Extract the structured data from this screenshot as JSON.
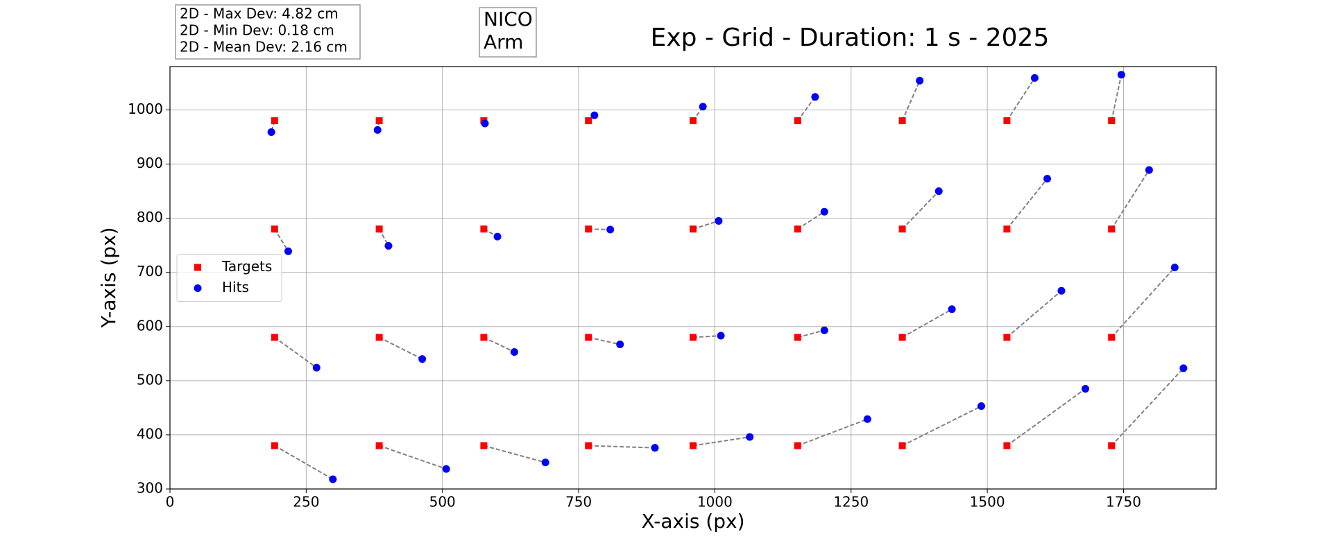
{
  "chart_data": {
    "type": "scatter",
    "title": "Exp - Grid - Duration: 1 s - 2025",
    "x_label": "X-axis (px)",
    "y_label": "Y-axis (px)",
    "annotations": [
      [
        "2D - Max Dev: 4.82 cm",
        "2D - Min Dev: 0.18 cm",
        "2D - Mean Dev: 2.16 cm"
      ],
      [
        "NICO",
        "Arm"
      ]
    ],
    "xlim": [
      0,
      1920
    ],
    "ylim": [
      300,
      1080
    ],
    "xticks": [
      0,
      250,
      500,
      750,
      1000,
      1250,
      1500,
      1750
    ],
    "yticks": [
      300,
      400,
      500,
      600,
      700,
      800,
      900,
      1000
    ],
    "grid": true,
    "legend": "center left",
    "series": [
      {
        "name": "Targets",
        "color": "#ff0000",
        "marker": "square",
        "x": [
          192,
          384,
          576,
          768,
          960,
          1152,
          1344,
          1536,
          1728,
          192,
          384,
          576,
          768,
          960,
          1152,
          1344,
          1536,
          1728,
          192,
          384,
          576,
          768,
          960,
          1152,
          1344,
          1536,
          1728,
          192,
          384,
          576,
          768,
          960,
          1152,
          1344,
          1536,
          1728
        ],
        "values": [
          980,
          980,
          980,
          980,
          980,
          980,
          980,
          980,
          980,
          780,
          780,
          780,
          780,
          780,
          780,
          780,
          780,
          780,
          580,
          580,
          580,
          580,
          580,
          580,
          580,
          580,
          580,
          380,
          380,
          380,
          380,
          380,
          380,
          380,
          380,
          380
        ]
      },
      {
        "name": "Hits",
        "color": "#0000ff",
        "marker": "circle",
        "x": [
          186,
          381,
          578,
          779,
          978,
          1184,
          1376,
          1587,
          1746,
          217,
          401,
          601,
          808,
          1007,
          1201,
          1411,
          1610,
          1797,
          269,
          463,
          632,
          826,
          1011,
          1201,
          1435,
          1636,
          1844,
          299,
          507,
          689,
          890,
          1064,
          1280,
          1489,
          1680,
          1860
        ],
        "values": [
          959,
          963,
          975,
          990,
          1006,
          1024,
          1054,
          1059,
          1065,
          739,
          749,
          766,
          779,
          795,
          812,
          850,
          873,
          889,
          524,
          540,
          553,
          567,
          583,
          593,
          632,
          666,
          709,
          318,
          337,
          349,
          376,
          396,
          429,
          453,
          485,
          523
        ]
      }
    ]
  }
}
